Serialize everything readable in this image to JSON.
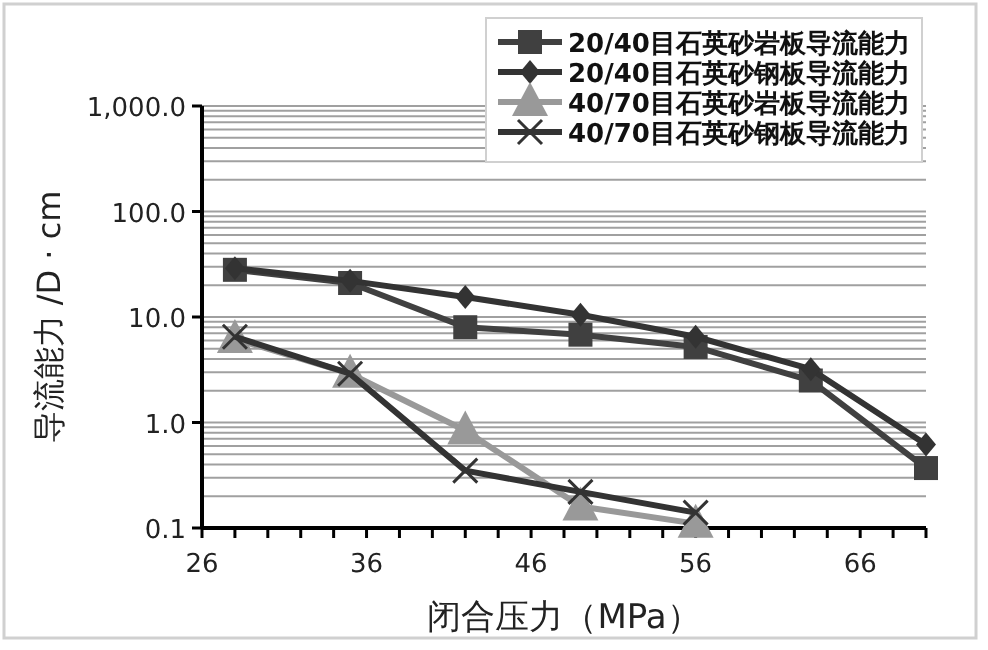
{
  "chart_data": {
    "type": "line",
    "xlabel": "闭合压力（MPa）",
    "ylabel": "导流能力 /D · cm",
    "x": [
      28,
      35,
      42,
      49,
      56,
      63,
      70
    ],
    "series": [
      {
        "name": "20/40目石英砂岩板导流能力",
        "color": "#404040",
        "marker": "square",
        "values": [
          28,
          21,
          8.0,
          6.8,
          5.2,
          2.5,
          0.37
        ]
      },
      {
        "name": "20/40目石英砂钢板导流能力",
        "color": "#333333",
        "marker": "diamond",
        "values": [
          29,
          22,
          15.5,
          10.5,
          6.5,
          3.2,
          0.62
        ]
      },
      {
        "name": "40/70目石英砂岩板导流能力",
        "color": "#999999",
        "marker": "triangle",
        "values": [
          6.2,
          2.9,
          0.84,
          0.16,
          0.11,
          null,
          null
        ]
      },
      {
        "name": "40/70目石英砂钢板导流能力",
        "color": "#333333",
        "marker": "cross",
        "values": [
          6.5,
          2.9,
          0.35,
          0.22,
          0.14,
          null,
          null
        ]
      }
    ],
    "log": "y",
    "xlim": [
      26,
      70
    ],
    "ylim": [
      0.1,
      1000
    ],
    "xticks": [
      26,
      {
        "value": 28,
        "label": null
      },
      {
        "value": 30,
        "label": null
      },
      {
        "value": 32,
        "label": null
      },
      {
        "value": 34,
        "label": null
      },
      36,
      {
        "value": 38,
        "label": null
      },
      {
        "value": 40,
        "label": null
      },
      {
        "value": 42,
        "label": null
      },
      {
        "value": 44,
        "label": null
      },
      46,
      {
        "value": 48,
        "label": null
      },
      {
        "value": 50,
        "label": null
      },
      {
        "value": 52,
        "label": null
      },
      {
        "value": 54,
        "label": null
      },
      56,
      {
        "value": 58,
        "label": null
      },
      {
        "value": 60,
        "label": null
      },
      {
        "value": 62,
        "label": null
      },
      {
        "value": 64,
        "label": null
      },
      66,
      {
        "value": 68,
        "label": null
      },
      {
        "value": 70,
        "label": null
      }
    ],
    "yticks": [
      {
        "value": 0.1,
        "label": "0.1"
      },
      {
        "value": 0.2,
        "label": null
      },
      {
        "value": 0.3,
        "label": null
      },
      {
        "value": 0.4,
        "label": null
      },
      {
        "value": 0.5,
        "label": null
      },
      {
        "value": 0.6,
        "label": null
      },
      {
        "value": 0.7,
        "label": null
      },
      {
        "value": 0.8,
        "label": null
      },
      {
        "value": 0.9,
        "label": null
      },
      {
        "value": 1,
        "label": "1.0"
      },
      {
        "value": 2,
        "label": null
      },
      {
        "value": 3,
        "label": null
      },
      {
        "value": 4,
        "label": null
      },
      {
        "value": 5,
        "label": null
      },
      {
        "value": 6,
        "label": null
      },
      {
        "value": 7,
        "label": null
      },
      {
        "value": 8,
        "label": null
      },
      {
        "value": 9,
        "label": null
      },
      {
        "value": 10,
        "label": "10.0"
      },
      {
        "value": 20,
        "label": null
      },
      {
        "value": 30,
        "label": null
      },
      {
        "value": 40,
        "label": null
      },
      {
        "value": 50,
        "label": null
      },
      {
        "value": 60,
        "label": null
      },
      {
        "value": 70,
        "label": null
      },
      {
        "value": 80,
        "label": null
      },
      {
        "value": 90,
        "label": null
      },
      {
        "value": 100,
        "label": "100.0"
      },
      {
        "value": 200,
        "label": null
      },
      {
        "value": 300,
        "label": null
      },
      {
        "value": 400,
        "label": null
      },
      {
        "value": 500,
        "label": null
      },
      {
        "value": 600,
        "label": null
      },
      {
        "value": 700,
        "label": null
      },
      {
        "value": 800,
        "label": null
      },
      {
        "value": 900,
        "label": null
      },
      {
        "value": 1000,
        "label": "1,000.0"
      }
    ],
    "grid": "y",
    "legend": "top right",
    "line_style": "solid"
  }
}
